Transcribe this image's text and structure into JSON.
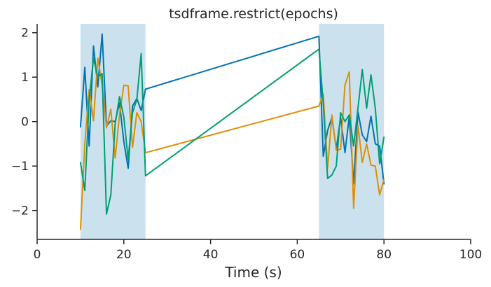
{
  "chart_data": {
    "type": "line",
    "title": "tsdframe.restrict(epochs)",
    "xlabel": "Time (s)",
    "ylabel": "",
    "xlim": [
      0,
      100
    ],
    "ylim": [
      -2.65,
      2.2
    ],
    "xticks": [
      0,
      20,
      40,
      60,
      80,
      100
    ],
    "yticks": [
      -2,
      -1,
      0,
      1,
      2
    ],
    "ytick_labels": [
      "−2",
      "−1",
      "0",
      "1",
      "2"
    ],
    "grid": false,
    "epochs": [
      {
        "start": 10,
        "end": 25
      },
      {
        "start": 65,
        "end": 80
      }
    ],
    "epoch_color": "#cbe2ee",
    "x": [
      10,
      11,
      12,
      13,
      14,
      15,
      16,
      17,
      18,
      19,
      20,
      21,
      22,
      23,
      24,
      25,
      65,
      66,
      67,
      68,
      69,
      70,
      71,
      72,
      73,
      74,
      75,
      76,
      77,
      78,
      79,
      80
    ],
    "series": [
      {
        "color": "#0173b2",
        "values": [
          -0.12,
          1.22,
          -0.55,
          1.7,
          0.78,
          1.97,
          -0.1,
          0.02,
          0.0,
          0.42,
          -0.45,
          -1.05,
          0.35,
          0.52,
          0.25,
          0.73,
          1.92,
          -0.78,
          -0.2,
          0.1,
          -0.62,
          0.1,
          -0.7,
          0.12,
          -1.4,
          0.22,
          -0.3,
          -0.45,
          0.12,
          -0.5,
          -0.55,
          -1.4
        ]
      },
      {
        "color": "#de8f05",
        "values": [
          -2.42,
          -0.5,
          0.72,
          0.02,
          1.43,
          0.82,
          -0.14,
          0.28,
          -0.82,
          0.15,
          0.82,
          0.8,
          -0.58,
          0.2,
          0.0,
          -0.7,
          0.35,
          0.62,
          -1.05,
          0.15,
          -0.65,
          -0.62,
          0.82,
          1.12,
          -1.95,
          -0.08,
          -0.92,
          -0.5,
          -0.98,
          -1.0,
          -1.65,
          -1.3
        ]
      },
      {
        "color": "#029e73",
        "values": [
          -0.92,
          -1.55,
          0.5,
          1.42,
          1.0,
          1.08,
          -2.08,
          -1.65,
          -0.05,
          0.56,
          0.1,
          -0.85,
          0.2,
          0.5,
          1.53,
          -1.22,
          1.63,
          0.4,
          -1.28,
          -1.2,
          -1.0,
          0.2,
          0.0,
          0.15,
          -0.55,
          0.3,
          1.17,
          0.3,
          1.05,
          0.3,
          -0.95,
          -0.35
        ]
      }
    ]
  }
}
